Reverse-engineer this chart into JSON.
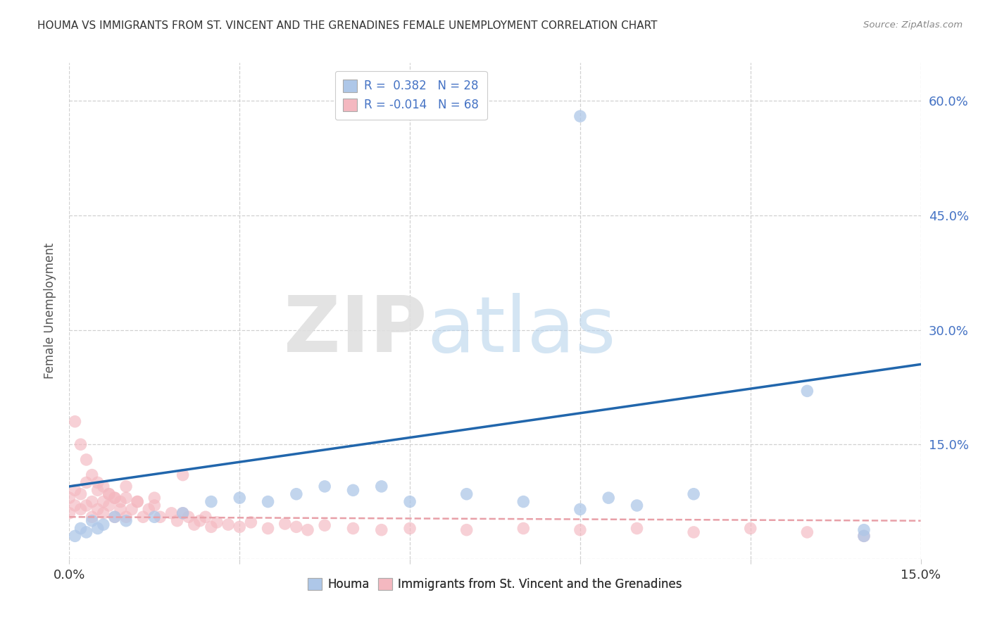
{
  "title": "HOUMA VS IMMIGRANTS FROM ST. VINCENT AND THE GRENADINES FEMALE UNEMPLOYMENT CORRELATION CHART",
  "source": "Source: ZipAtlas.com",
  "ylabel": "Female Unemployment",
  "xlim": [
    0.0,
    0.15
  ],
  "ylim": [
    0.0,
    0.65
  ],
  "color_houma": "#aec7e8",
  "color_svg": "#f4b8c0",
  "color_line_houma": "#2166ac",
  "color_line_svg": "#e8a0a8",
  "legend_r1": "R =  0.382   N = 28",
  "legend_r2": "R = -0.014   N = 68",
  "houma_x": [
    0.001,
    0.002,
    0.003,
    0.004,
    0.005,
    0.006,
    0.008,
    0.01,
    0.015,
    0.02,
    0.025,
    0.03,
    0.035,
    0.04,
    0.045,
    0.05,
    0.055,
    0.06,
    0.07,
    0.08,
    0.09,
    0.095,
    0.1,
    0.11,
    0.13,
    0.14,
    0.09,
    0.14
  ],
  "houma_y": [
    0.03,
    0.04,
    0.035,
    0.05,
    0.04,
    0.045,
    0.055,
    0.05,
    0.055,
    0.06,
    0.075,
    0.08,
    0.075,
    0.085,
    0.095,
    0.09,
    0.095,
    0.075,
    0.085,
    0.075,
    0.065,
    0.08,
    0.07,
    0.085,
    0.22,
    0.038,
    0.58,
    0.03
  ],
  "svg_x": [
    0.0,
    0.0,
    0.001,
    0.001,
    0.002,
    0.002,
    0.003,
    0.003,
    0.004,
    0.004,
    0.005,
    0.005,
    0.006,
    0.006,
    0.007,
    0.007,
    0.008,
    0.008,
    0.009,
    0.009,
    0.01,
    0.01,
    0.011,
    0.012,
    0.013,
    0.014,
    0.015,
    0.016,
    0.018,
    0.019,
    0.02,
    0.021,
    0.022,
    0.023,
    0.024,
    0.025,
    0.026,
    0.028,
    0.03,
    0.032,
    0.035,
    0.038,
    0.04,
    0.042,
    0.045,
    0.05,
    0.055,
    0.06,
    0.07,
    0.08,
    0.09,
    0.1,
    0.11,
    0.12,
    0.13,
    0.14,
    0.001,
    0.002,
    0.003,
    0.004,
    0.005,
    0.006,
    0.007,
    0.008,
    0.01,
    0.012,
    0.015,
    0.02
  ],
  "svg_y": [
    0.06,
    0.08,
    0.07,
    0.09,
    0.065,
    0.085,
    0.07,
    0.1,
    0.055,
    0.075,
    0.065,
    0.09,
    0.075,
    0.06,
    0.07,
    0.085,
    0.055,
    0.08,
    0.065,
    0.075,
    0.08,
    0.055,
    0.065,
    0.075,
    0.055,
    0.065,
    0.07,
    0.055,
    0.06,
    0.05,
    0.06,
    0.055,
    0.045,
    0.05,
    0.055,
    0.042,
    0.048,
    0.045,
    0.042,
    0.048,
    0.04,
    0.046,
    0.042,
    0.038,
    0.044,
    0.04,
    0.038,
    0.04,
    0.038,
    0.04,
    0.038,
    0.04,
    0.035,
    0.04,
    0.035,
    0.03,
    0.18,
    0.15,
    0.13,
    0.11,
    0.1,
    0.095,
    0.085,
    0.08,
    0.095,
    0.075,
    0.08,
    0.11
  ],
  "line_houma_x0": 0.0,
  "line_houma_y0": 0.095,
  "line_houma_x1": 0.15,
  "line_houma_y1": 0.255,
  "line_svg_x0": 0.0,
  "line_svg_y0": 0.055,
  "line_svg_x1": 0.15,
  "line_svg_y1": 0.05
}
